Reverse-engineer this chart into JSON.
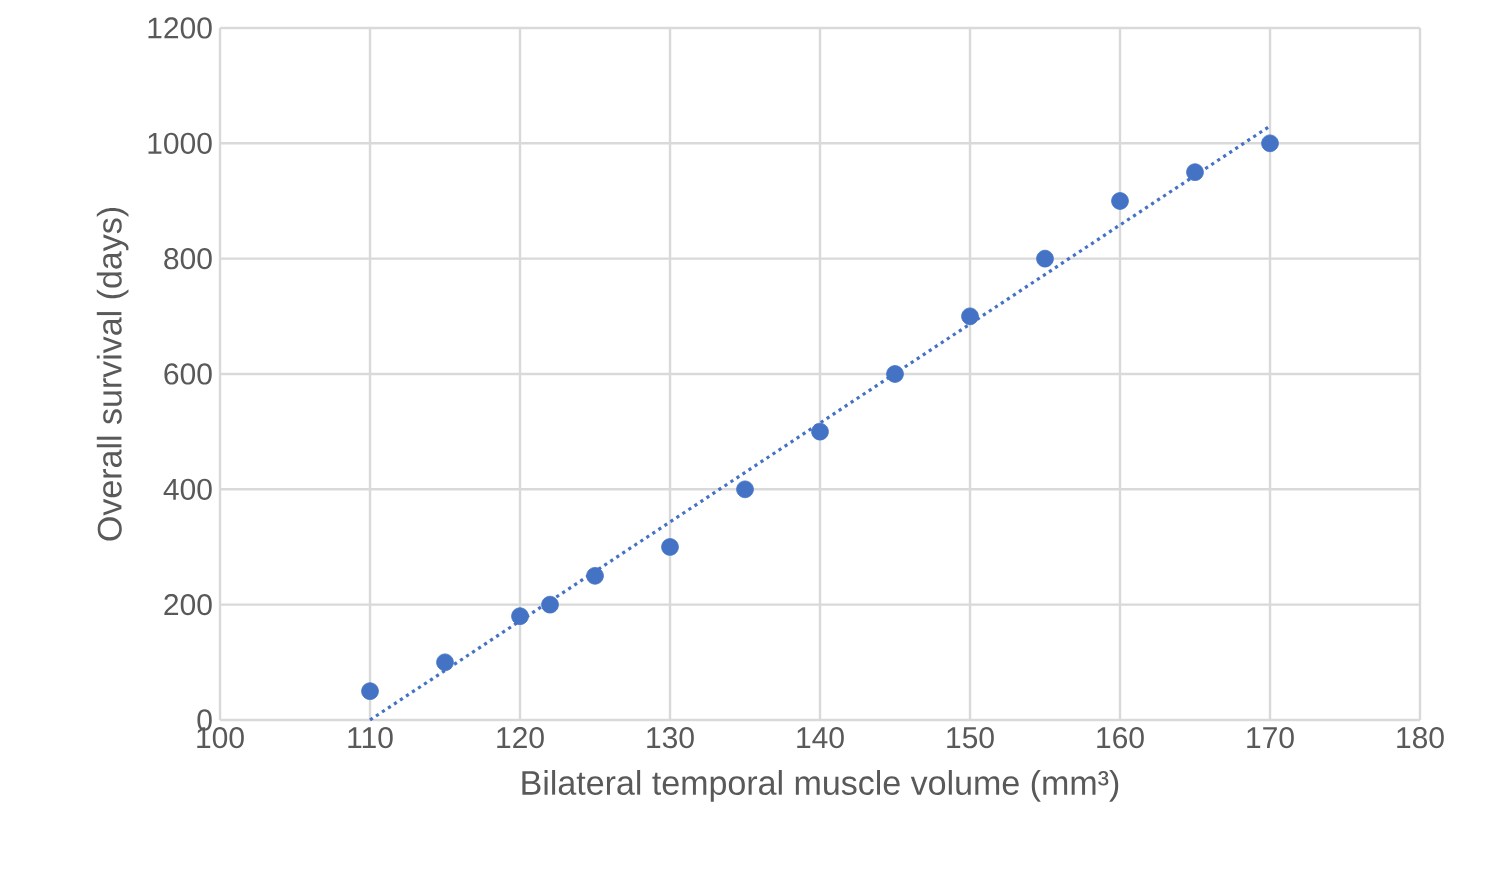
{
  "chart_data": {
    "type": "scatter",
    "xlabel": "Bilateral temporal muscle volume (mm³)",
    "ylabel": "Overall survival (days)",
    "xlim": [
      100,
      180
    ],
    "ylim": [
      0,
      1200
    ],
    "xticks": [
      100,
      110,
      120,
      130,
      140,
      150,
      160,
      170,
      180
    ],
    "yticks": [
      0,
      200,
      400,
      600,
      800,
      1000,
      1200
    ],
    "grid": true,
    "series": [
      {
        "color": "#4472c4",
        "marker": "circle",
        "x": [
          110,
          115,
          120,
          122,
          125,
          130,
          135,
          140,
          145,
          150,
          155,
          160,
          165,
          170
        ],
        "values": [
          50,
          100,
          180,
          200,
          250,
          300,
          400,
          500,
          600,
          700,
          800,
          900,
          950,
          1000
        ]
      },
      {
        "type": "line",
        "color": "#4472c4",
        "marker": "none",
        "line_style": "dotted",
        "x": [
          110,
          170
        ],
        "values": [
          0,
          1030
        ]
      }
    ]
  }
}
